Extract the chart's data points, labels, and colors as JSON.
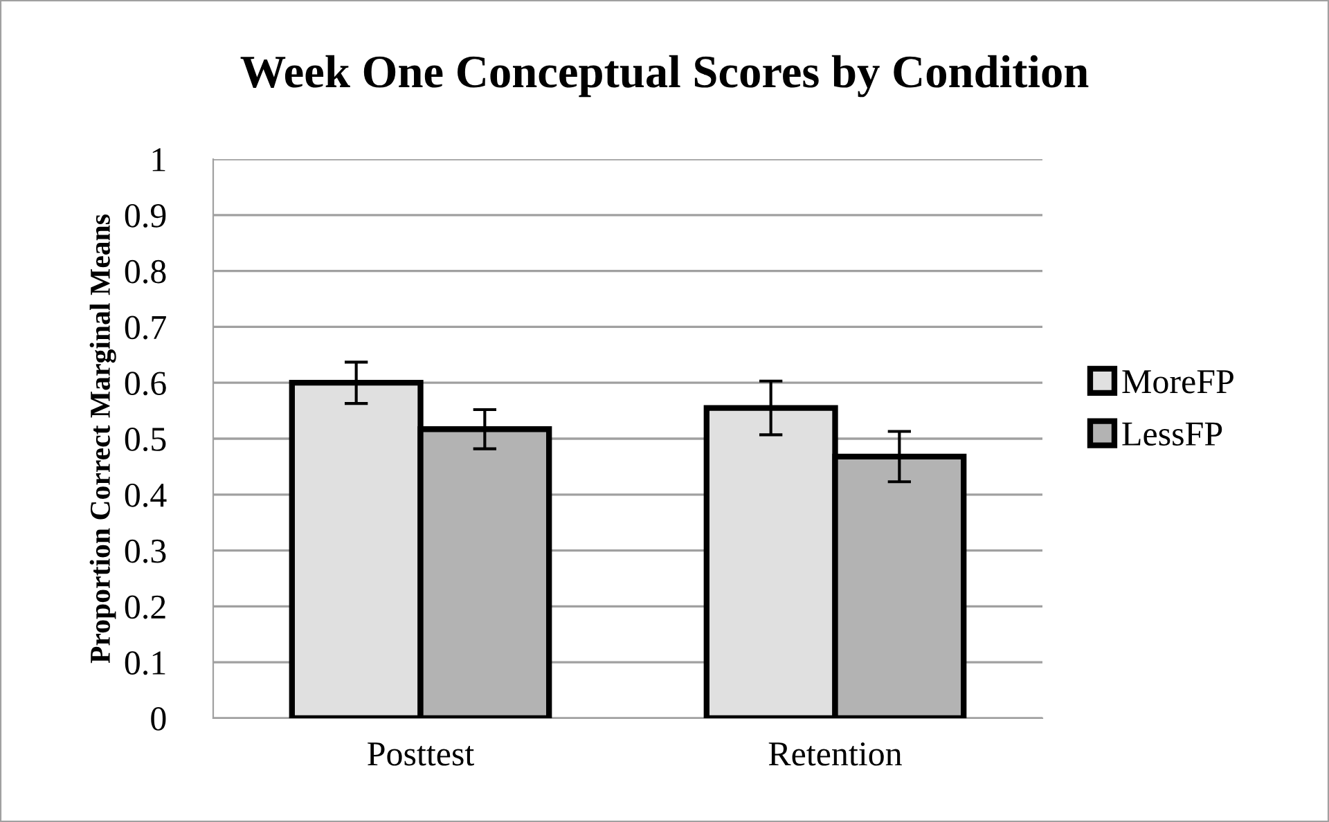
{
  "chart_data": {
    "type": "bar",
    "title": "Week One Conceptual Scores by Condition",
    "ylabel": "Proportion Correct Marginal Means",
    "categories": [
      "Posttest",
      "Retention"
    ],
    "series": [
      {
        "name": "MoreFP",
        "color": "#e0e0e0",
        "values": [
          0.6,
          0.555
        ],
        "errors": [
          0.037,
          0.048
        ]
      },
      {
        "name": "LessFP",
        "color": "#b3b3b3",
        "values": [
          0.517,
          0.468
        ],
        "errors": [
          0.035,
          0.045
        ]
      }
    ],
    "ylim": [
      0,
      1
    ],
    "yticks": [
      0,
      0.1,
      0.2,
      0.3,
      0.4,
      0.5,
      0.6,
      0.7,
      0.8,
      0.9,
      1
    ],
    "grid": "y",
    "legend": "right"
  }
}
